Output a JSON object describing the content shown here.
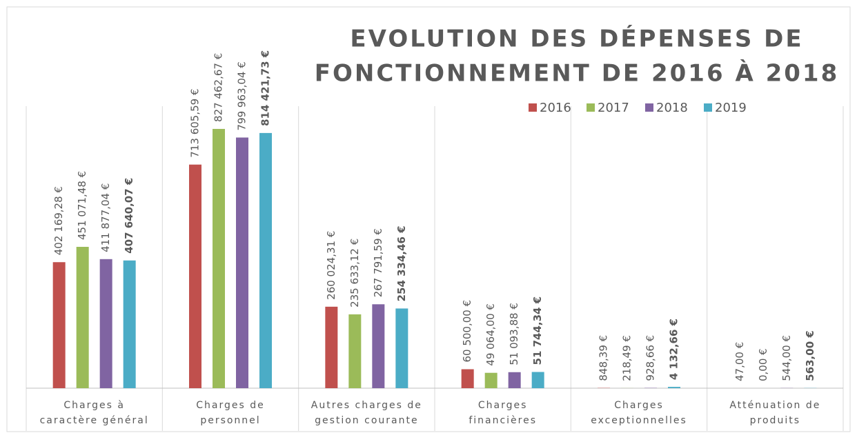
{
  "chart_data": {
    "type": "bar",
    "title": [
      "EVOLUTION DES DÉPENSES DE",
      "FONCTIONNEMENT DE 2016 À 2018"
    ],
    "categories": [
      [
        "Charges à",
        "caractère général"
      ],
      [
        "Charges de",
        "personnel"
      ],
      [
        "Autres charges de",
        "gestion courante"
      ],
      [
        "Charges",
        "financières"
      ],
      [
        "Charges",
        "exceptionnelles"
      ],
      [
        "Atténuation de",
        "produits"
      ]
    ],
    "series": [
      {
        "name": "2016",
        "color": "#c0504d",
        "label_color": "#595959",
        "label_bold": false,
        "values": [
          402169.28,
          713605.59,
          260024.31,
          60500.0,
          848.39,
          47.0
        ],
        "value_labels": [
          "402 169,28 €",
          "713 605,59 €",
          "260 024,31 €",
          "60 500,00 €",
          "848,39 €",
          "47,00 €"
        ]
      },
      {
        "name": "2017",
        "color": "#9bbb59",
        "label_color": "#595959",
        "label_bold": false,
        "values": [
          451071.48,
          827462.67,
          235633.12,
          49064.0,
          218.49,
          0.0
        ],
        "value_labels": [
          "451 071,48 €",
          "827 462,67 €",
          "235 633,12 €",
          "49 064,00 €",
          "218,49 €",
          "0,00 €"
        ]
      },
      {
        "name": "2018",
        "color": "#8064a2",
        "label_color": "#595959",
        "label_bold": false,
        "values": [
          411877.04,
          799963.04,
          267791.59,
          51093.88,
          928.66,
          544.0
        ],
        "value_labels": [
          "411 877,04 €",
          "799 963,04 €",
          "267 791,59 €",
          "51 093,88 €",
          "928,66 €",
          "544,00 €"
        ]
      },
      {
        "name": "2019",
        "color": "#4bacc6",
        "label_color": "#ff0000",
        "label_bold": true,
        "values": [
          407640.07,
          814421.73,
          254334.46,
          51744.34,
          4132.66,
          563.0
        ],
        "value_labels": [
          "407 640,07 €",
          "814 421,73 €",
          "254 334,46 €",
          "51 744,34 €",
          "4 132,66 €",
          "563,00 €"
        ]
      }
    ],
    "ylim": [
      0,
      900000
    ]
  }
}
